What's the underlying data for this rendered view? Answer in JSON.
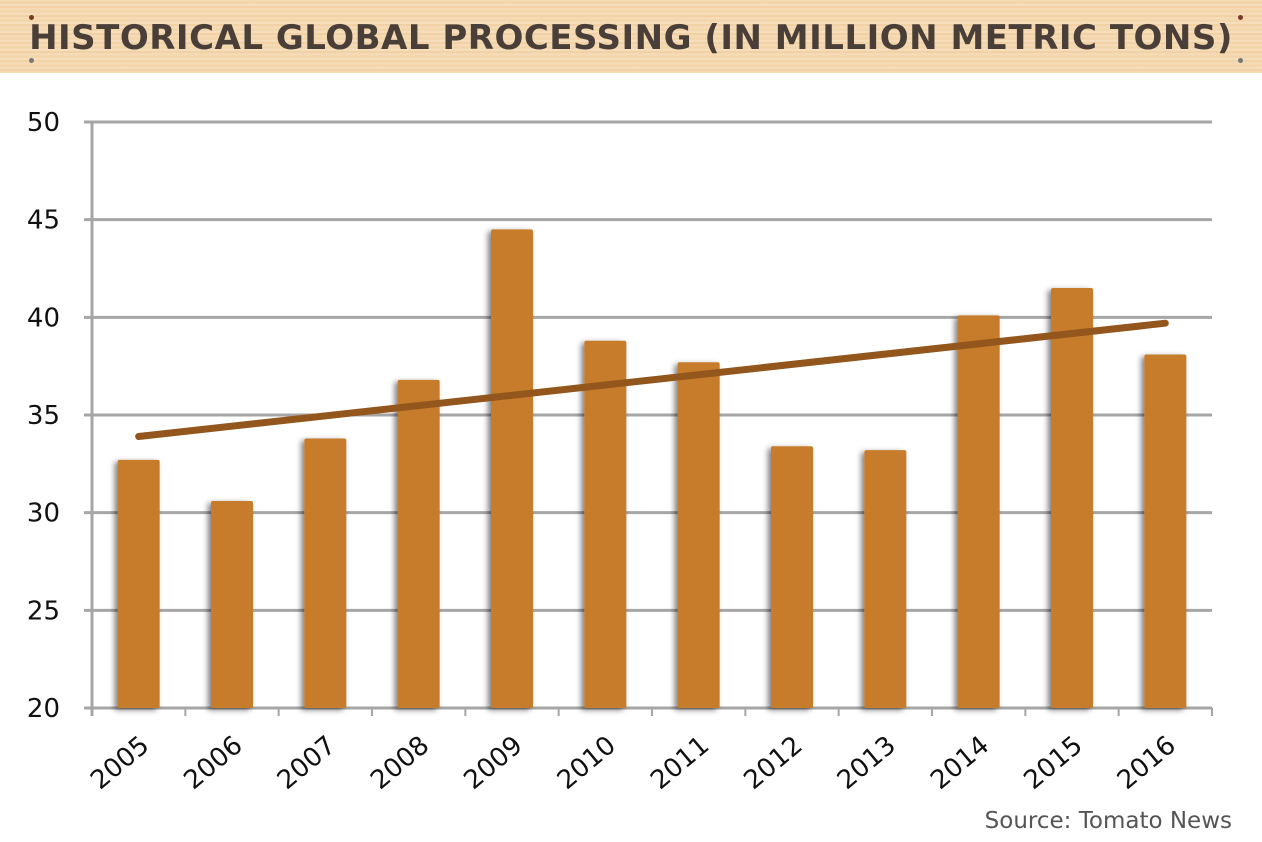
{
  "chart_data": {
    "type": "bar",
    "title": "HISTORICAL GLOBAL PROCESSING (IN MILLION METRIC TONS)",
    "categories": [
      "2005",
      "2006",
      "2007",
      "2008",
      "2009",
      "2010",
      "2011",
      "2012",
      "2013",
      "2014",
      "2015",
      "2016"
    ],
    "values": [
      32.7,
      30.6,
      33.8,
      36.8,
      44.5,
      38.8,
      37.7,
      33.4,
      33.2,
      40.1,
      41.5,
      38.1
    ],
    "trendline": {
      "start": 33.9,
      "end": 39.7
    },
    "ylim": [
      20,
      50
    ],
    "yticks": [
      "20",
      "25",
      "30",
      "35",
      "40",
      "45",
      "50"
    ],
    "grid": true,
    "colors": {
      "bar": "#c67c2b",
      "trendline": "#93561c",
      "grid": "#a6a6a6"
    },
    "source": "Source: Tomato News"
  }
}
